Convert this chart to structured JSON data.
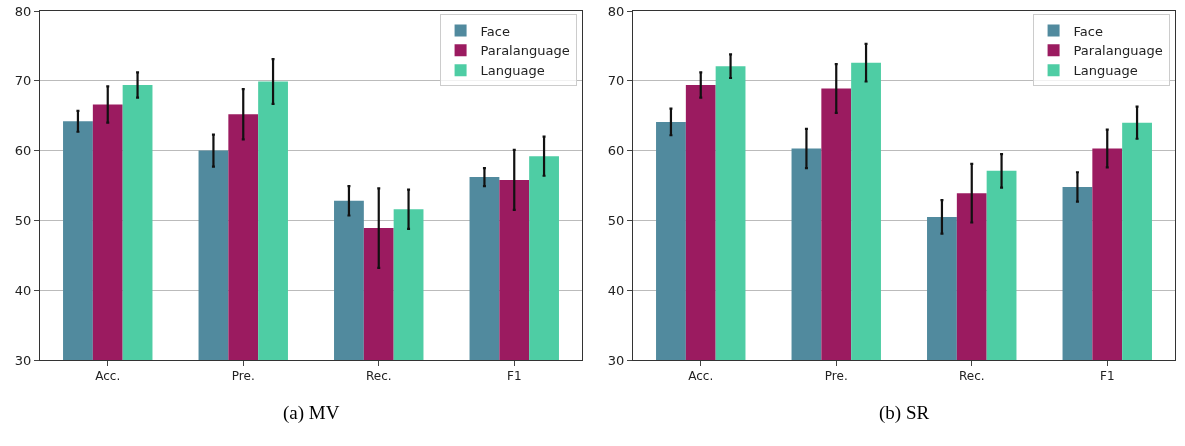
{
  "chart_data": [
    {
      "type": "bar",
      "categories": [
        "Acc.",
        "Pre.",
        "Rec.",
        "F1"
      ],
      "ylim": [
        30,
        80
      ],
      "yticks": [
        30,
        40,
        50,
        60,
        70,
        80
      ],
      "grid": "y",
      "legend": "top right",
      "annotations": [
        "(a) MV"
      ],
      "series": [
        {
          "name": "Face",
          "color": "#518a9e",
          "values": [
            64.2,
            60.0,
            52.8,
            56.2
          ],
          "errors": [
            1.5,
            2.3,
            2.1,
            1.3
          ]
        },
        {
          "name": "Paralanguage",
          "color": "#9b1b60",
          "values": [
            66.6,
            65.2,
            48.9,
            55.8
          ],
          "errors": [
            2.6,
            3.6,
            5.7,
            4.3
          ]
        },
        {
          "name": "Language",
          "color": "#4ecda4",
          "values": [
            69.4,
            69.9,
            51.6,
            59.2
          ],
          "errors": [
            1.8,
            3.2,
            2.8,
            2.8
          ]
        }
      ]
    },
    {
      "type": "bar",
      "categories": [
        "Acc.",
        "Pre.",
        "Rec.",
        "F1"
      ],
      "ylim": [
        30,
        80
      ],
      "yticks": [
        30,
        40,
        50,
        60,
        70,
        80
      ],
      "grid": "y",
      "legend": "top right",
      "annotations": [
        "(b) SR"
      ],
      "series": [
        {
          "name": "Face",
          "color": "#518a9e",
          "values": [
            64.1,
            60.3,
            50.5,
            54.8
          ],
          "errors": [
            1.9,
            2.8,
            2.4,
            2.1
          ]
        },
        {
          "name": "Paralanguage",
          "color": "#9b1b60",
          "values": [
            69.4,
            68.9,
            53.9,
            60.3
          ],
          "errors": [
            1.8,
            3.5,
            4.2,
            2.7
          ]
        },
        {
          "name": "Language",
          "color": "#4ecda4",
          "values": [
            72.1,
            72.6,
            57.1,
            64.0
          ],
          "errors": [
            1.7,
            2.7,
            2.4,
            2.3
          ]
        }
      ]
    }
  ]
}
